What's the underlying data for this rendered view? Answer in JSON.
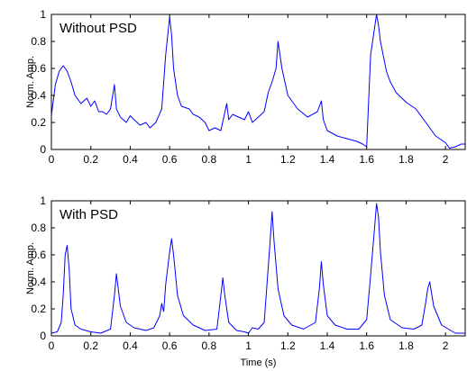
{
  "figure": {
    "line_color": "#0000ff",
    "axis_color": "#000000",
    "background": "#ffffff"
  },
  "chart_data": [
    {
      "type": "line",
      "title": "",
      "annotation": "Without PSD",
      "xlabel": "",
      "ylabel": "Norm. Amp.",
      "xlim": [
        0,
        2.1
      ],
      "ylim": [
        0,
        1
      ],
      "xticks": [
        "0",
        "0.2",
        "0.4",
        "0.6",
        "0.8",
        "1",
        "1.2",
        "1.4",
        "1.6",
        "1.8",
        "2"
      ],
      "yticks": [
        "0",
        "0.2",
        "0.4",
        "0.6",
        "0.8",
        "1"
      ],
      "grid": false,
      "x": [
        0,
        0.02,
        0.04,
        0.06,
        0.08,
        0.1,
        0.12,
        0.15,
        0.18,
        0.2,
        0.22,
        0.24,
        0.26,
        0.28,
        0.3,
        0.32,
        0.33,
        0.35,
        0.38,
        0.4,
        0.42,
        0.45,
        0.48,
        0.5,
        0.53,
        0.56,
        0.58,
        0.6,
        0.61,
        0.62,
        0.64,
        0.66,
        0.7,
        0.72,
        0.75,
        0.78,
        0.8,
        0.83,
        0.86,
        0.89,
        0.9,
        0.92,
        0.95,
        0.98,
        1.0,
        1.02,
        1.05,
        1.08,
        1.1,
        1.12,
        1.14,
        1.15,
        1.17,
        1.2,
        1.25,
        1.3,
        1.35,
        1.37,
        1.38,
        1.4,
        1.45,
        1.5,
        1.55,
        1.58,
        1.6,
        1.62,
        1.64,
        1.65,
        1.66,
        1.67,
        1.7,
        1.72,
        1.75,
        1.8,
        1.85,
        1.9,
        1.95,
        2.0,
        2.02,
        2.05,
        2.08,
        2.1
      ],
      "values": [
        0.25,
        0.48,
        0.58,
        0.62,
        0.58,
        0.5,
        0.4,
        0.34,
        0.38,
        0.32,
        0.36,
        0.28,
        0.28,
        0.26,
        0.3,
        0.48,
        0.3,
        0.24,
        0.2,
        0.25,
        0.22,
        0.18,
        0.2,
        0.16,
        0.2,
        0.3,
        0.7,
        0.98,
        0.85,
        0.6,
        0.4,
        0.32,
        0.3,
        0.26,
        0.24,
        0.2,
        0.14,
        0.16,
        0.14,
        0.34,
        0.22,
        0.26,
        0.24,
        0.22,
        0.28,
        0.2,
        0.24,
        0.28,
        0.42,
        0.5,
        0.6,
        0.8,
        0.6,
        0.4,
        0.3,
        0.24,
        0.28,
        0.36,
        0.22,
        0.14,
        0.1,
        0.08,
        0.06,
        0.04,
        0.02,
        0.7,
        0.9,
        1.0,
        0.92,
        0.8,
        0.58,
        0.5,
        0.42,
        0.35,
        0.3,
        0.2,
        0.1,
        0.05,
        0.01,
        0.02,
        0.04,
        0.04
      ]
    },
    {
      "type": "line",
      "title": "",
      "annotation": "With PSD",
      "xlabel": "Time (s)",
      "ylabel": "Norm. Amp.",
      "xlim": [
        0,
        2.1
      ],
      "ylim": [
        0,
        1
      ],
      "xticks": [
        "0",
        "0.2",
        "0.4",
        "0.6",
        "0.8",
        "1",
        "1.2",
        "1.4",
        "1.6",
        "1.8",
        "2"
      ],
      "yticks": [
        "0",
        "0.2",
        "0.4",
        "0.6",
        "0.8",
        "1"
      ],
      "grid": false,
      "x": [
        0,
        0.03,
        0.05,
        0.06,
        0.07,
        0.08,
        0.09,
        0.1,
        0.12,
        0.15,
        0.2,
        0.25,
        0.3,
        0.32,
        0.33,
        0.35,
        0.38,
        0.42,
        0.48,
        0.52,
        0.55,
        0.56,
        0.57,
        0.58,
        0.6,
        0.61,
        0.62,
        0.64,
        0.67,
        0.72,
        0.78,
        0.84,
        0.86,
        0.87,
        0.88,
        0.9,
        0.94,
        0.98,
        1.0,
        1.02,
        1.05,
        1.08,
        1.1,
        1.11,
        1.12,
        1.13,
        1.15,
        1.18,
        1.22,
        1.28,
        1.34,
        1.36,
        1.37,
        1.38,
        1.4,
        1.44,
        1.5,
        1.56,
        1.6,
        1.62,
        1.64,
        1.65,
        1.66,
        1.67,
        1.69,
        1.72,
        1.78,
        1.84,
        1.88,
        1.9,
        1.91,
        1.92,
        1.94,
        1.98,
        2.05,
        2.1
      ],
      "values": [
        0.02,
        0.03,
        0.1,
        0.3,
        0.6,
        0.67,
        0.5,
        0.2,
        0.08,
        0.05,
        0.03,
        0.02,
        0.05,
        0.3,
        0.46,
        0.22,
        0.1,
        0.06,
        0.04,
        0.06,
        0.15,
        0.24,
        0.18,
        0.38,
        0.62,
        0.72,
        0.6,
        0.3,
        0.15,
        0.08,
        0.04,
        0.05,
        0.3,
        0.43,
        0.3,
        0.1,
        0.04,
        0.03,
        0.02,
        0.06,
        0.05,
        0.1,
        0.5,
        0.7,
        0.92,
        0.7,
        0.35,
        0.15,
        0.08,
        0.05,
        0.1,
        0.35,
        0.55,
        0.38,
        0.15,
        0.08,
        0.05,
        0.05,
        0.12,
        0.45,
        0.8,
        0.98,
        0.88,
        0.62,
        0.3,
        0.12,
        0.06,
        0.05,
        0.08,
        0.25,
        0.35,
        0.4,
        0.22,
        0.08,
        0.02,
        0.02
      ]
    }
  ]
}
